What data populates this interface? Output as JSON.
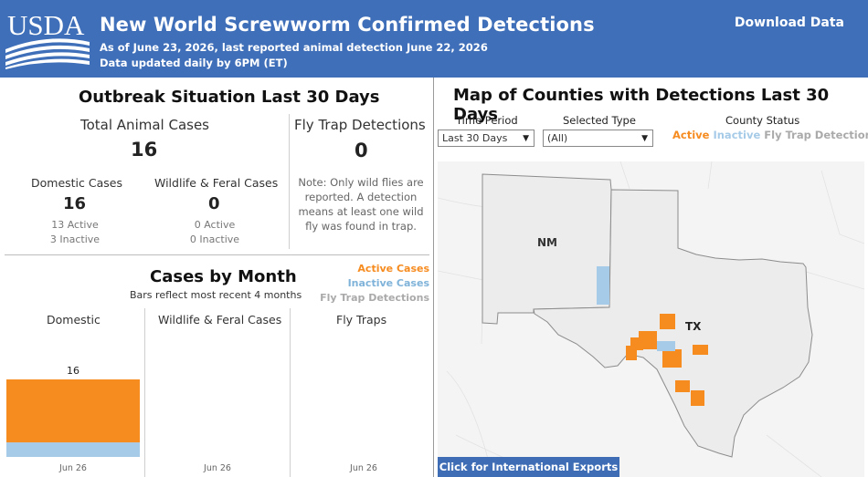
{
  "header": {
    "logo_text": "USDA",
    "title": "New World Screwworm Confirmed Detections",
    "subtitle_line1": "As of June 23, 2026, last reported animal detection June 22, 2026",
    "subtitle_line2": "Data updated daily by 6PM (ET)",
    "download_label": "Download Data"
  },
  "outbreak": {
    "heading": "Outbreak Situation Last 30 Days",
    "total_label": "Total Animal Cases",
    "total_value": "16",
    "flytrap_label": "Fly Trap Detections",
    "flytrap_value": "0",
    "flytrap_note": [
      "Note: Only wild flies are",
      "reported. A detection",
      "means at least one wild",
      "fly was found in trap."
    ],
    "domestic": {
      "label": "Domestic Cases",
      "value": "16",
      "active": "13 Active",
      "inactive": "3 Inactive"
    },
    "wildlife": {
      "label": "Wildlife & Feral Cases",
      "value": "0",
      "active": "0 Active",
      "inactive": "0 Inactive"
    }
  },
  "cases_by_month": {
    "heading": "Cases by Month",
    "subheading": "Bars reflect most recent 4 months",
    "legend": {
      "active": "Active Cases",
      "inactive": "Inactive Cases",
      "flytrap": "Fly Trap Detections"
    },
    "columns": [
      "Domestic",
      "Wildlife & Feral Cases",
      "Fly Traps"
    ],
    "month_label": "Jun 26",
    "bar_total_label": "16"
  },
  "chart_data": {
    "type": "bar",
    "title": "Cases by Month",
    "categories": [
      "Jun 26"
    ],
    "panels": [
      "Domestic",
      "Wildlife & Feral Cases",
      "Fly Traps"
    ],
    "series": [
      {
        "name": "Active Cases",
        "values": {
          "Domestic": [
            13
          ],
          "Wildlife & Feral Cases": [
            0
          ],
          "Fly Traps": [
            0
          ]
        }
      },
      {
        "name": "Inactive Cases",
        "values": {
          "Domestic": [
            3
          ],
          "Wildlife & Feral Cases": [
            0
          ],
          "Fly Traps": [
            0
          ]
        }
      }
    ],
    "stacked": true
  },
  "map": {
    "heading": "Map of Counties with Detections Last 30 Days",
    "time_period_label": "Time Period",
    "time_period_value": "Last 30 Days",
    "selected_type_label": "Selected Type",
    "selected_type_value": "(All)",
    "county_status_label": "County Status",
    "status_active": "Active",
    "status_inactive": "Inactive",
    "status_flytrap": "Fly Trap Detection",
    "state_nm": "NM",
    "state_tx": "TX",
    "intl_button": "Click for International Exports"
  },
  "colors": {
    "header_bg": "#3f6fb9",
    "active": "#f68b1f",
    "inactive": "#a6cbe8",
    "flytrap": "#aaaaaa"
  }
}
